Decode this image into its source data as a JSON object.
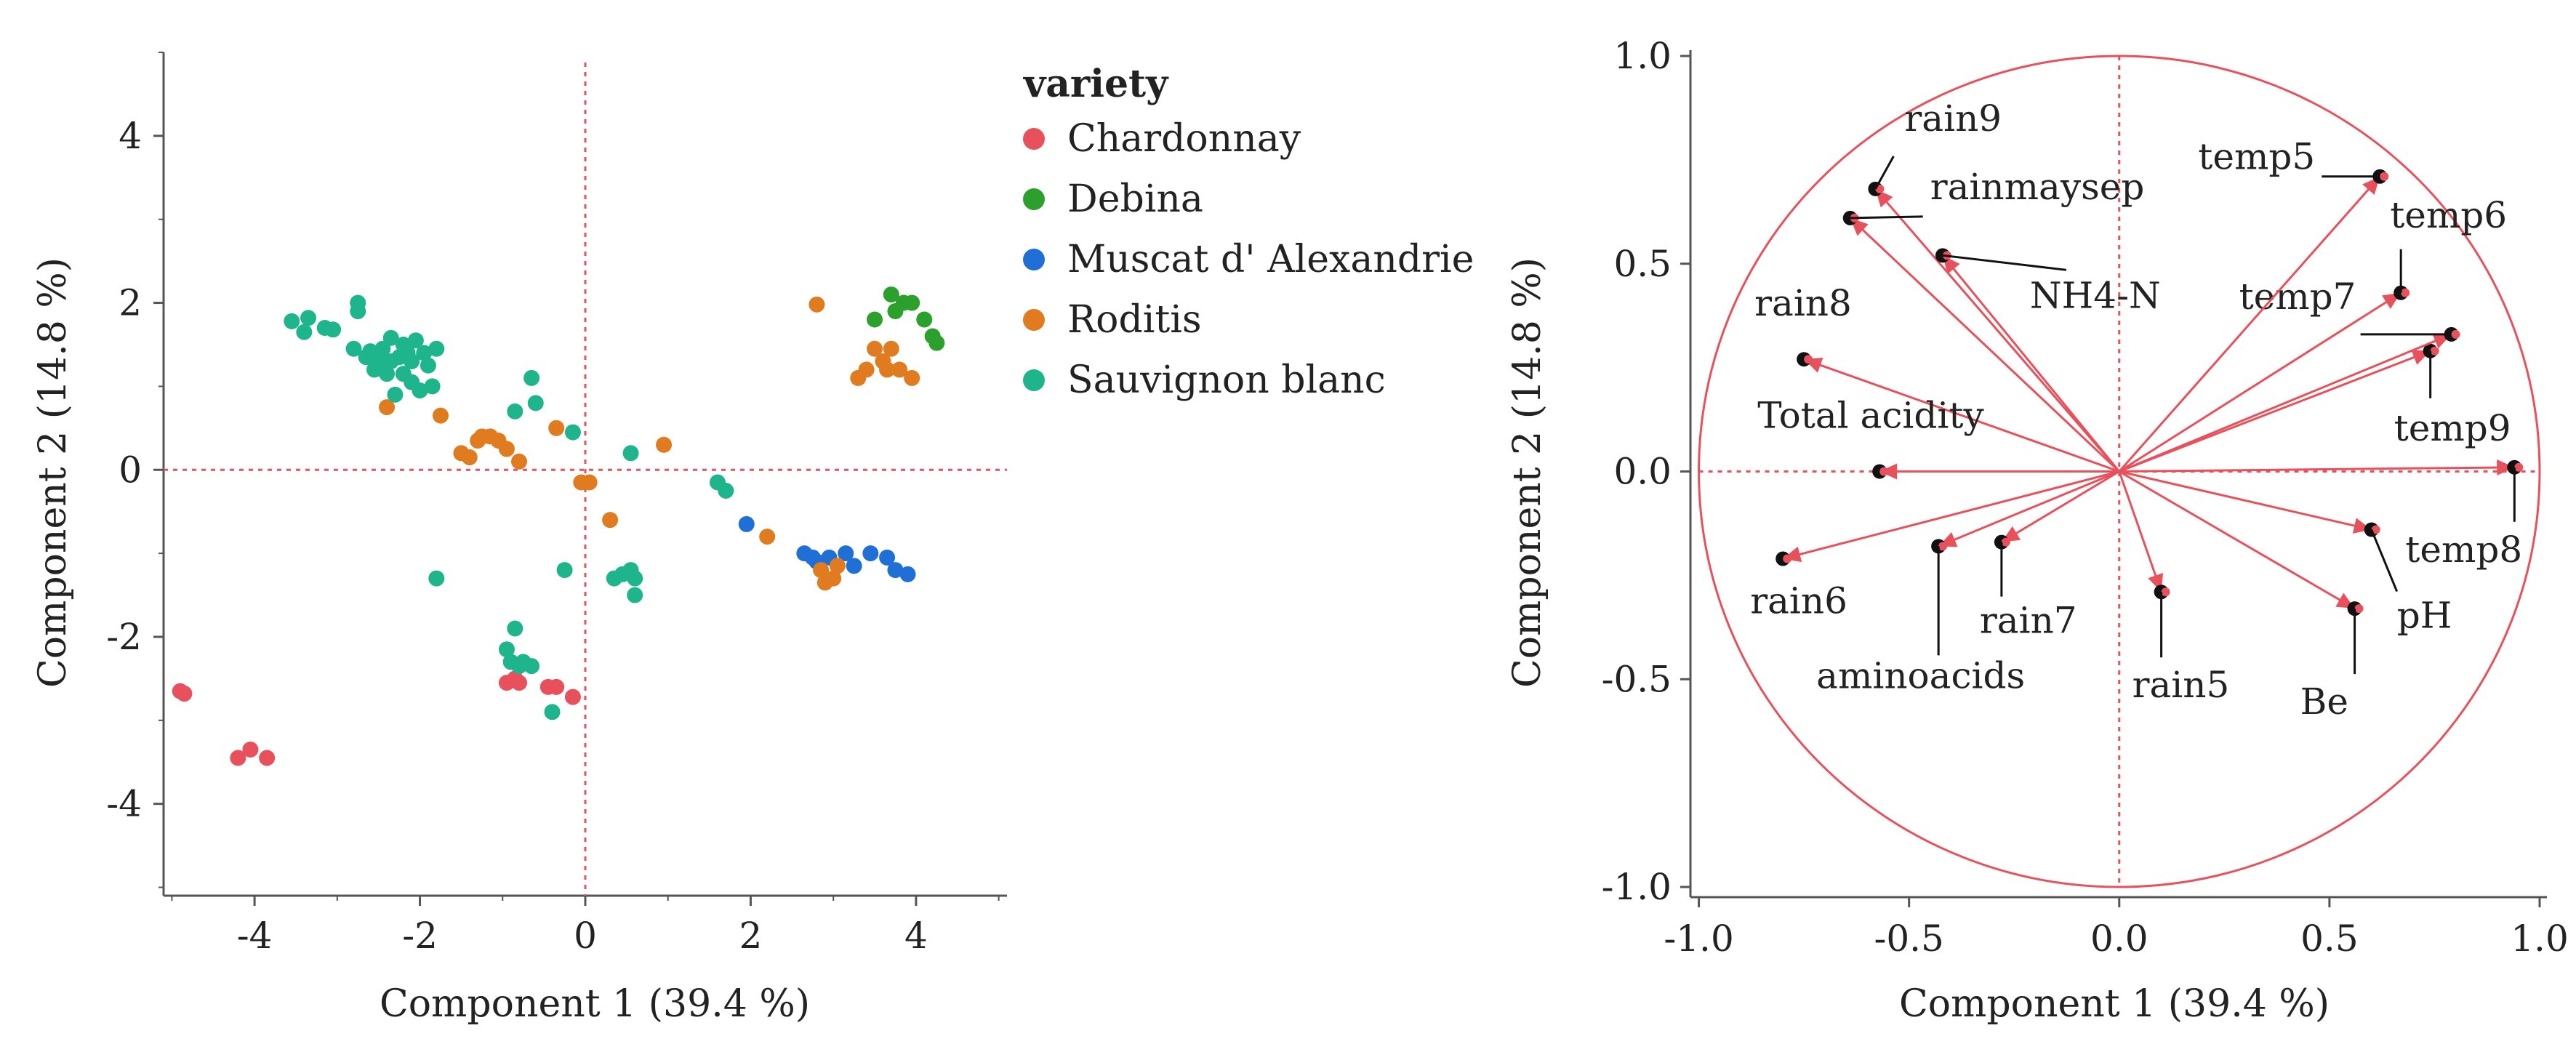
{
  "chart_data": [
    {
      "type": "scatter",
      "title": "",
      "xlabel": "Component 1  (39.4 %)",
      "ylabel": "Component 2  (14.8 %)",
      "xlim": [
        -5.1,
        5.1
      ],
      "ylim": [
        -5.1,
        5.0
      ],
      "xticks": [
        "-4",
        "-2",
        "0",
        "2",
        "4"
      ],
      "yticks": [
        "4",
        "2",
        "0",
        "-2",
        "-4"
      ],
      "grid": false,
      "legend_title": "variety",
      "legend_position": "right",
      "series": [
        {
          "name": "Chardonnay",
          "color": "#e8505b",
          "points": [
            [
              -4.9,
              -2.65
            ],
            [
              -4.85,
              -2.68
            ],
            [
              -4.2,
              -3.45
            ],
            [
              -4.05,
              -3.35
            ],
            [
              -3.85,
              -3.45
            ],
            [
              -0.95,
              -2.55
            ],
            [
              -0.85,
              -2.5
            ],
            [
              -0.8,
              -2.55
            ],
            [
              -0.45,
              -2.6
            ],
            [
              -0.35,
              -2.6
            ],
            [
              -0.15,
              -2.72
            ]
          ]
        },
        {
          "name": "Debina",
          "color": "#2ca02c",
          "points": [
            [
              3.5,
              1.8
            ],
            [
              3.7,
              2.1
            ],
            [
              3.75,
              1.9
            ],
            [
              3.85,
              2.0
            ],
            [
              3.95,
              2.0
            ],
            [
              4.1,
              1.8
            ],
            [
              4.2,
              1.6
            ],
            [
              4.25,
              1.52
            ]
          ]
        },
        {
          "name": "Muscat d' Alexandrie",
          "color": "#1f6fd6",
          "points": [
            [
              1.95,
              -0.65
            ],
            [
              2.65,
              -1.0
            ],
            [
              2.75,
              -1.05
            ],
            [
              2.8,
              -1.1
            ],
            [
              2.95,
              -1.05
            ],
            [
              3.15,
              -1.0
            ],
            [
              3.25,
              -1.15
            ],
            [
              3.45,
              -1.0
            ],
            [
              3.65,
              -1.05
            ],
            [
              3.75,
              -1.2
            ],
            [
              3.9,
              -1.25
            ]
          ]
        },
        {
          "name": "Roditis",
          "color": "#e07b1f",
          "points": [
            [
              -2.4,
              0.75
            ],
            [
              -1.75,
              0.65
            ],
            [
              -1.5,
              0.2
            ],
            [
              -1.4,
              0.15
            ],
            [
              -1.3,
              0.35
            ],
            [
              -1.25,
              0.4
            ],
            [
              -1.15,
              0.4
            ],
            [
              -1.05,
              0.35
            ],
            [
              -0.95,
              0.25
            ],
            [
              -0.8,
              0.1
            ],
            [
              -0.35,
              0.5
            ],
            [
              -0.05,
              -0.15
            ],
            [
              0.05,
              -0.15
            ],
            [
              0.3,
              -0.6
            ],
            [
              0.95,
              0.3
            ],
            [
              2.2,
              -0.8
            ],
            [
              2.8,
              1.98
            ],
            [
              2.85,
              -1.2
            ],
            [
              2.9,
              -1.35
            ],
            [
              3.0,
              -1.3
            ],
            [
              3.05,
              -1.15
            ],
            [
              3.3,
              1.1
            ],
            [
              3.4,
              1.2
            ],
            [
              3.5,
              1.45
            ],
            [
              3.6,
              1.3
            ],
            [
              3.65,
              1.2
            ],
            [
              3.7,
              1.45
            ],
            [
              3.8,
              1.2
            ],
            [
              3.95,
              1.1
            ]
          ]
        },
        {
          "name": "Sauvignon blanc",
          "color": "#1fb58c",
          "points": [
            [
              -3.55,
              1.78
            ],
            [
              -3.35,
              1.82
            ],
            [
              -3.4,
              1.65
            ],
            [
              -3.15,
              1.7
            ],
            [
              -3.05,
              1.68
            ],
            [
              -2.75,
              2.0
            ],
            [
              -2.75,
              1.9
            ],
            [
              -2.8,
              1.45
            ],
            [
              -2.65,
              1.35
            ],
            [
              -2.6,
              1.42
            ],
            [
              -2.55,
              1.2
            ],
            [
              -2.5,
              1.3
            ],
            [
              -2.45,
              1.45
            ],
            [
              -2.4,
              1.15
            ],
            [
              -2.35,
              1.3
            ],
            [
              -2.35,
              1.58
            ],
            [
              -2.3,
              0.9
            ],
            [
              -2.25,
              1.35
            ],
            [
              -2.2,
              1.5
            ],
            [
              -2.2,
              1.15
            ],
            [
              -2.15,
              1.4
            ],
            [
              -2.1,
              1.3
            ],
            [
              -2.1,
              1.05
            ],
            [
              -2.05,
              1.55
            ],
            [
              -2.0,
              0.95
            ],
            [
              -1.95,
              1.4
            ],
            [
              -1.9,
              1.25
            ],
            [
              -1.85,
              1.0
            ],
            [
              -1.8,
              1.45
            ],
            [
              -1.8,
              -1.3
            ],
            [
              -0.95,
              -2.15
            ],
            [
              -0.9,
              -2.3
            ],
            [
              -0.85,
              -1.9
            ],
            [
              -0.8,
              -2.35
            ],
            [
              -0.75,
              -2.3
            ],
            [
              -0.85,
              0.7
            ],
            [
              -0.65,
              1.1
            ],
            [
              -0.6,
              0.8
            ],
            [
              -0.65,
              -2.35
            ],
            [
              -0.4,
              -2.9
            ],
            [
              -0.25,
              -1.2
            ],
            [
              -0.15,
              0.45
            ],
            [
              0.35,
              -1.3
            ],
            [
              0.45,
              -1.25
            ],
            [
              0.55,
              -1.2
            ],
            [
              0.6,
              -1.3
            ],
            [
              0.6,
              -1.5
            ],
            [
              0.55,
              0.2
            ],
            [
              1.6,
              -0.15
            ],
            [
              1.7,
              -0.25
            ]
          ]
        }
      ]
    },
    {
      "type": "scatter",
      "subtype": "loading-plot",
      "title": "",
      "xlabel": "Component 1  (39.4 %)",
      "ylabel": "Component 2  (14.8 %)",
      "xlim": [
        -1.0,
        1.0
      ],
      "ylim": [
        -1.0,
        1.0
      ],
      "xticks": [
        "-1.0",
        "-0.5",
        "0.0",
        "0.5",
        "1.0"
      ],
      "yticks": [
        "1.0",
        "0.5",
        "0.0",
        "-0.5",
        "-1.0"
      ],
      "grid": false,
      "unit_circle": true,
      "color": "#e8505b",
      "loadings": [
        {
          "name": "rain9",
          "x": -0.58,
          "y": 0.68
        },
        {
          "name": "rainmaysep",
          "x": -0.64,
          "y": 0.61
        },
        {
          "name": "NH4-N",
          "x": -0.42,
          "y": 0.52
        },
        {
          "name": "rain8",
          "x": -0.75,
          "y": 0.27
        },
        {
          "name": "Total acidity",
          "x": -0.57,
          "y": 0.0
        },
        {
          "name": "rain6",
          "x": -0.8,
          "y": -0.21
        },
        {
          "name": "aminoacids",
          "x": -0.43,
          "y": -0.18
        },
        {
          "name": "rain7",
          "x": -0.28,
          "y": -0.17
        },
        {
          "name": "rain5",
          "x": 0.1,
          "y": -0.29
        },
        {
          "name": "Be",
          "x": 0.56,
          "y": -0.33
        },
        {
          "name": "pH",
          "x": 0.6,
          "y": -0.14
        },
        {
          "name": "temp8",
          "x": 0.94,
          "y": 0.01
        },
        {
          "name": "temp9",
          "x": 0.74,
          "y": 0.29
        },
        {
          "name": "temp7",
          "x": 0.79,
          "y": 0.33
        },
        {
          "name": "temp6",
          "x": 0.67,
          "y": 0.43
        },
        {
          "name": "temp5",
          "x": 0.62,
          "y": 0.71
        }
      ]
    }
  ]
}
